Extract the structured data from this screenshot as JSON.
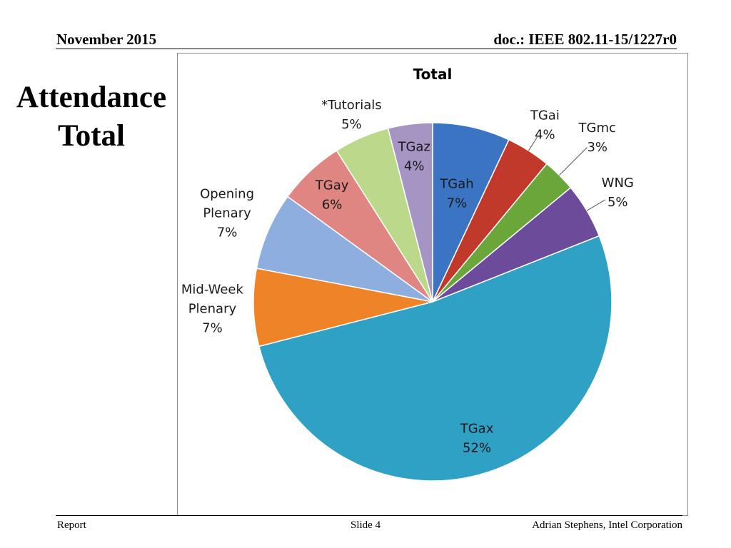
{
  "header": {
    "date": "November 2015",
    "doc": "doc.: IEEE 802.11-15/1227r0"
  },
  "slide": {
    "title_line1": "Attendance",
    "title_line2": "Total"
  },
  "footer": {
    "left": "Report",
    "center": "Slide 4",
    "right": "Adrian Stephens, Intel Corporation"
  },
  "chart_data": {
    "type": "pie",
    "title": "Total",
    "start_angle_deg": 0,
    "direction": "clockwise",
    "slices": [
      {
        "label": "TGah",
        "pct_label": "7%",
        "value": 7,
        "color": "#3b74c3"
      },
      {
        "label": "TGai",
        "pct_label": "4%",
        "value": 4,
        "color": "#c0392b"
      },
      {
        "label": "TGmc",
        "pct_label": "3%",
        "value": 3,
        "color": "#6aa63a"
      },
      {
        "label": "WNG",
        "pct_label": "5%",
        "value": 5,
        "color": "#6c4b9b"
      },
      {
        "label": "TGax",
        "pct_label": "52%",
        "value": 52,
        "color": "#2fa1c4"
      },
      {
        "label": "Mid-Week Plenary",
        "pct_label": "7%",
        "value": 7,
        "color": "#ee8427"
      },
      {
        "label": "Opening Plenary",
        "pct_label": "7%",
        "value": 7,
        "color": "#8eaee0"
      },
      {
        "label": "TGay",
        "pct_label": "6%",
        "value": 6,
        "color": "#df8582"
      },
      {
        "label": "*Tutorials",
        "pct_label": "5%",
        "value": 5,
        "color": "#bcd98b"
      },
      {
        "label": "TGaz",
        "pct_label": "4%",
        "value": 4,
        "color": "#a695c3"
      }
    ]
  }
}
